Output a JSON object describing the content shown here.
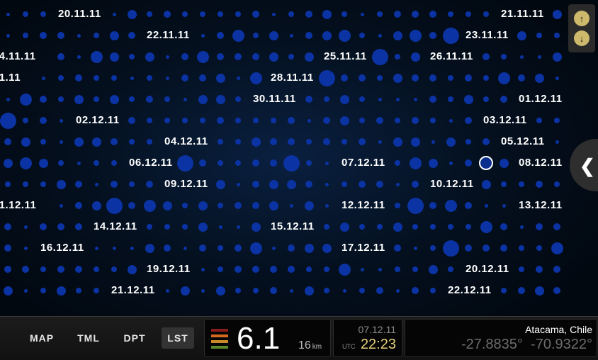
{
  "grid": {
    "date_labels": [
      {
        "text": "20.11.11",
        "row": 0,
        "col": 3
      },
      {
        "text": "21.11.11",
        "row": 0,
        "col": 28
      },
      {
        "text": "22.11.11",
        "row": 1,
        "col": 8
      },
      {
        "text": "23.11.11",
        "row": 1,
        "col": 26
      },
      {
        "text": ".4.11.11",
        "row": 2,
        "col": 0
      },
      {
        "text": "25.11.11",
        "row": 2,
        "col": 18
      },
      {
        "text": "26.11.11",
        "row": 2,
        "col": 24
      },
      {
        "text": ".1.11",
        "row": 3,
        "col": 0
      },
      {
        "text": "28.11.11",
        "row": 3,
        "col": 15
      },
      {
        "text": "30.11.11",
        "row": 4,
        "col": 14
      },
      {
        "text": "01.12.11",
        "row": 4,
        "col": 29
      },
      {
        "text": "02.12.11",
        "row": 5,
        "col": 4
      },
      {
        "text": "03.12.11",
        "row": 5,
        "col": 27
      },
      {
        "text": "04.12.11",
        "row": 6,
        "col": 9
      },
      {
        "text": "05.12.11",
        "row": 6,
        "col": 28
      },
      {
        "text": "06.12.11",
        "row": 7,
        "col": 7
      },
      {
        "text": "07.12.11",
        "row": 7,
        "col": 19
      },
      {
        "text": "08.12.11",
        "row": 7,
        "col": 29
      },
      {
        "text": "09.12.11",
        "row": 8,
        "col": 9
      },
      {
        "text": "10.12.11",
        "row": 8,
        "col": 24
      },
      {
        "text": ".1.12.11",
        "row": 9,
        "col": 0
      },
      {
        "text": "12.12.11",
        "row": 9,
        "col": 19
      },
      {
        "text": "13.12.11",
        "row": 9,
        "col": 29
      },
      {
        "text": "14.12.11",
        "row": 10,
        "col": 5
      },
      {
        "text": "15.12.11",
        "row": 10,
        "col": 15
      },
      {
        "text": "16.12.11",
        "row": 11,
        "col": 2
      },
      {
        "text": "17.12.11",
        "row": 11,
        "col": 19
      },
      {
        "text": "19.12.11",
        "row": 12,
        "col": 8
      },
      {
        "text": "20.12.11",
        "row": 12,
        "col": 26
      },
      {
        "text": "21.12.11",
        "row": 13,
        "col": 6
      },
      {
        "text": "22.12.11",
        "row": 13,
        "col": 25
      }
    ],
    "selected_event": {
      "row": 7,
      "col": 27
    }
  },
  "scroll": {
    "up_icon": "↑",
    "down_icon": "↓"
  },
  "side_tab": {
    "icon": "❮"
  },
  "nav": [
    {
      "label": "MAP",
      "active": false
    },
    {
      "label": "TML",
      "active": false
    },
    {
      "label": "DPT",
      "active": false
    },
    {
      "label": "LST",
      "active": true
    }
  ],
  "event": {
    "magnitude": "6.1",
    "depth": "16",
    "depth_unit": "km",
    "magnitude_level_colors": [
      "#8a1c1c",
      "#d2691e",
      "#c98a2a",
      "#5a8a2a"
    ],
    "date": "07.12.11",
    "utc_label": "UTC",
    "time": "22:23",
    "location": "Atacama, Chile",
    "latitude": "-27.8835°",
    "longitude": "-70.9322°"
  },
  "colors": {
    "dot": "#0b33a3",
    "accent_time": "#e3cf7a",
    "scroll_button": "#cdb86c"
  }
}
